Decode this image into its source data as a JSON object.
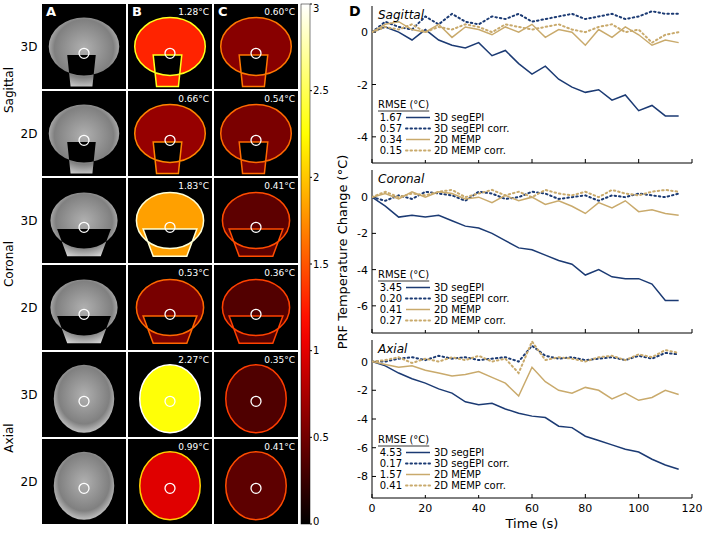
{
  "image_panels": {
    "columns": [
      "A",
      "B",
      "C"
    ],
    "views": [
      {
        "name": "Sagittal",
        "rows": [
          "3D",
          "2D"
        ]
      },
      {
        "name": "Coronal",
        "rows": [
          "3D",
          "2D"
        ]
      },
      {
        "name": "Axial",
        "rows": [
          "3D",
          "2D"
        ]
      }
    ],
    "maps": [
      {
        "values": [
          1.28,
          0.66,
          1.83,
          0.53,
          2.27,
          0.99
        ],
        "value_labels": [
          "1.28°C",
          "0.66°C",
          "1.83°C",
          "0.53°C",
          "2.27°C",
          "0.99°C"
        ]
      },
      {
        "values": [
          0.6,
          0.54,
          0.41,
          0.36,
          0.35,
          0.41
        ],
        "value_labels": [
          "0.60°C",
          "0.54°C",
          "0.41°C",
          "0.36°C",
          "0.35°C",
          "0.41°C"
        ]
      }
    ],
    "colorbar": {
      "range": [
        0,
        3
      ],
      "ticks": [
        0,
        0.5,
        1,
        1.5,
        2,
        2.5,
        3
      ]
    }
  },
  "chart_data": [
    {
      "type": "line",
      "panel": "D",
      "title": "Sagittal",
      "x": [
        0,
        5,
        10,
        15,
        20,
        25,
        30,
        35,
        40,
        45,
        50,
        55,
        60,
        65,
        70,
        75,
        80,
        85,
        90,
        95,
        100,
        105,
        110,
        115
      ],
      "xlim": [
        0,
        120
      ],
      "xticks": [
        0,
        20,
        40,
        60,
        80,
        100,
        120
      ],
      "ylim": [
        -5,
        1
      ],
      "yticks": [
        -4,
        -2,
        0
      ],
      "tick_labels": "y",
      "legend": "lower left",
      "legend_title": "RMSE (°C)",
      "series": [
        {
          "name": "3D segEPI",
          "color": "#1b3a73",
          "line_style": "solid",
          "rmse": 1.67,
          "values": [
            0,
            0.2,
            0,
            -0.3,
            0.1,
            -0.3,
            -0.5,
            -0.6,
            -0.4,
            -0.9,
            -0.7,
            -1.2,
            -1.6,
            -1.3,
            -1.8,
            -2.1,
            -2.3,
            -2.2,
            -2.6,
            -2.4,
            -3.0,
            -2.8,
            -3.2,
            -3.2
          ]
        },
        {
          "name": "3D segEPI corr.",
          "color": "#1b3a73",
          "line_style": "dotted",
          "rmse": 0.57,
          "values": [
            0,
            0.4,
            0.2,
            0.1,
            0.6,
            0.3,
            0.7,
            0.4,
            0.3,
            0.6,
            0.5,
            0.7,
            0.4,
            0.5,
            0.6,
            0.7,
            0.5,
            0.6,
            0.7,
            0.5,
            0.6,
            0.8,
            0.7,
            0.7
          ]
        },
        {
          "name": "2D MEMP",
          "color": "#c9aa6c",
          "line_style": "solid",
          "rmse": 0.34,
          "values": [
            0,
            0.3,
            0.4,
            0.1,
            0,
            0.3,
            -0.2,
            0.2,
            0.1,
            -0.1,
            0.2,
            0,
            0.3,
            -0.2,
            0.1,
            0,
            -0.5,
            0.1,
            -0.2,
            0.2,
            -0.1,
            -0.5,
            -0.3,
            -0.4
          ]
        },
        {
          "name": "2D MEMP corr.",
          "color": "#c9aa6c",
          "line_style": "dotted",
          "rmse": 0.15,
          "values": [
            0,
            0.2,
            0.1,
            0.3,
            0,
            0.2,
            0.1,
            0.3,
            0.2,
            0,
            0.3,
            0.2,
            0.1,
            0.2,
            0.3,
            0.1,
            0,
            0.2,
            0.3,
            0,
            0.1,
            -0.4,
            -0.1,
            0
          ]
        }
      ]
    },
    {
      "type": "line",
      "title": "Coronal",
      "ylabel": "PRF Temperature Change (°C)",
      "x": [
        0,
        5,
        10,
        15,
        20,
        25,
        30,
        35,
        40,
        45,
        50,
        55,
        60,
        65,
        70,
        75,
        80,
        85,
        90,
        95,
        100,
        105,
        110,
        115
      ],
      "xlim": [
        0,
        120
      ],
      "xticks": [
        0,
        20,
        40,
        60,
        80,
        100,
        120
      ],
      "ylim": [
        -7.5,
        1.5
      ],
      "yticks": [
        -6,
        -4,
        -2,
        0
      ],
      "tick_labels": "y",
      "legend": "lower left",
      "legend_title": "RMSE (°C)",
      "series": [
        {
          "name": "3D segEPI",
          "color": "#1b3a73",
          "line_style": "solid",
          "rmse": 3.45,
          "values": [
            0,
            -0.5,
            -1.1,
            -1.0,
            -1.1,
            -1.0,
            -1.3,
            -1.6,
            -1.7,
            -2.0,
            -2.4,
            -2.8,
            -2.9,
            -3.2,
            -3.5,
            -3.7,
            -4.3,
            -4.0,
            -4.4,
            -4.5,
            -4.5,
            -4.8,
            -5.7,
            -5.7
          ]
        },
        {
          "name": "3D segEPI corr.",
          "color": "#1b3a73",
          "line_style": "dotted",
          "rmse": {
            "value": 0.2,
            "label": "0.20"
          },
          "values": [
            0,
            -0.2,
            0.1,
            -0.1,
            0.3,
            0.2,
            0.1,
            -0.2,
            0.3,
            0.2,
            -0.1,
            0,
            0.3,
            0.2,
            -0.1,
            0,
            0.1,
            -0.2,
            0.1,
            0,
            0.2,
            0.1,
            0,
            0.2
          ]
        },
        {
          "name": "2D MEMP",
          "color": "#c9aa6c",
          "line_style": "solid",
          "rmse": 0.41,
          "values": [
            0,
            0.2,
            -0.1,
            0.3,
            0,
            0.3,
            0.2,
            -0.1,
            0,
            -0.3,
            0.1,
            -0.2,
            0,
            -0.4,
            -0.2,
            -0.5,
            -0.9,
            -0.3,
            -0.6,
            -0.2,
            -0.8,
            -0.7,
            -0.9,
            -1.0
          ]
        },
        {
          "name": "2D MEMP corr.",
          "color": "#c9aa6c",
          "line_style": "dotted",
          "rmse": 0.27,
          "values": [
            0,
            0.3,
            0,
            0.2,
            0.1,
            0.3,
            0.4,
            0,
            0.2,
            0.4,
            0.1,
            0.3,
            0,
            0.4,
            0.2,
            0.1,
            0.3,
            0,
            0.4,
            0.2,
            0.1,
            0.3,
            0.4,
            0.3
          ]
        }
      ]
    },
    {
      "type": "line",
      "title": "Axial",
      "xlabel": "Time (s)",
      "x": [
        0,
        5,
        10,
        15,
        20,
        25,
        30,
        35,
        40,
        45,
        50,
        55,
        60,
        65,
        70,
        75,
        80,
        85,
        90,
        95,
        100,
        105,
        110,
        115
      ],
      "xlim": [
        0,
        120
      ],
      "xticks": [
        0,
        20,
        40,
        60,
        80,
        100,
        120
      ],
      "ylim": [
        -9.5,
        1.5
      ],
      "yticks": [
        -8,
        -6,
        -4,
        -2,
        0
      ],
      "tick_labels": true,
      "legend": "lower left",
      "legend_title": "RMSE (°C)",
      "series": [
        {
          "name": "3D segEPI",
          "color": "#1b3a73",
          "line_style": "solid",
          "rmse": 4.53,
          "values": [
            0,
            -0.3,
            -0.8,
            -1.2,
            -1.5,
            -1.9,
            -2.2,
            -2.8,
            -3.0,
            -2.9,
            -3.3,
            -3.6,
            -3.8,
            -3.9,
            -4.5,
            -4.6,
            -5.2,
            -5.5,
            -5.8,
            -6.1,
            -6.3,
            -6.8,
            -7.2,
            -7.5
          ]
        },
        {
          "name": "3D segEPI corr.",
          "color": "#1b3a73",
          "line_style": "dotted",
          "rmse": 0.17,
          "values": [
            0,
            0,
            0.2,
            0.3,
            0.1,
            0.4,
            0.2,
            0.3,
            0.1,
            0.2,
            0.3,
            0,
            1.1,
            0.4,
            0.2,
            0.3,
            0.1,
            0.2,
            0.3,
            0.1,
            0.4,
            0.2,
            0.6,
            0.5
          ]
        },
        {
          "name": "2D MEMP",
          "color": "#c9aa6c",
          "line_style": "solid",
          "rmse": 1.57,
          "values": [
            0,
            -0.2,
            -0.4,
            -0.3,
            -0.6,
            -0.8,
            -1.0,
            -0.9,
            -0.7,
            -1.1,
            -1.5,
            -2.4,
            -0.4,
            -1.4,
            -2.0,
            -2.2,
            -1.8,
            -2.0,
            -2.6,
            -2.2,
            -2.7,
            -2.5,
            -2.0,
            -2.3
          ]
        },
        {
          "name": "2D MEMP corr.",
          "color": "#c9aa6c",
          "line_style": "dotted",
          "rmse": 0.41,
          "values": [
            0,
            0.1,
            0.3,
            -0.1,
            0.2,
            0,
            0.3,
            0.1,
            0.4,
            0,
            0.2,
            -0.8,
            1.4,
            0.1,
            0.3,
            0.2,
            0,
            0.3,
            0.4,
            0.1,
            0.5,
            0.3,
            0.8,
            0.6
          ]
        }
      ]
    }
  ]
}
